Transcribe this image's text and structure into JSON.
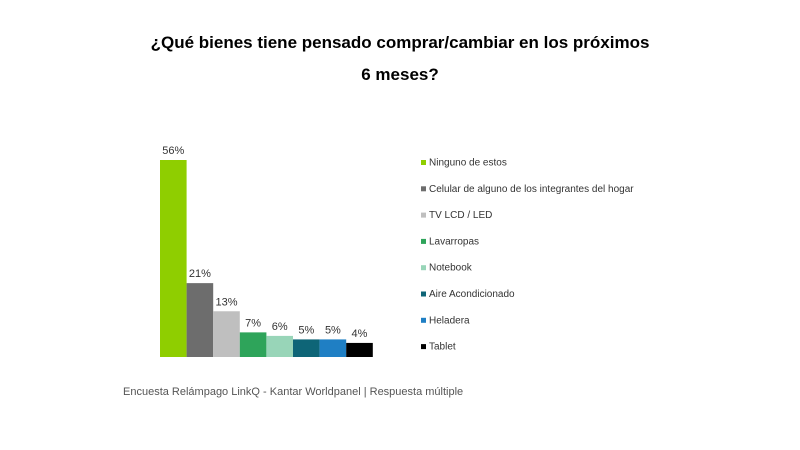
{
  "chart_data": {
    "type": "bar",
    "title_line1": "¿Qué bienes tiene pensado comprar/cambiar en los próximos",
    "title_line2": "6 meses?",
    "categories": [
      "Ninguno de estos",
      "Celular de alguno de los integrantes del hogar",
      "TV LCD / LED",
      "Lavarropas",
      "Notebook",
      "Aire Acondicionado",
      "Heladera",
      "Tablet"
    ],
    "values": [
      56,
      21,
      13,
      7,
      6,
      5,
      5,
      4
    ],
    "data_labels": [
      "56%",
      "21%",
      "13%",
      "7%",
      "6%",
      "5%",
      "5%",
      "4%"
    ],
    "colors": [
      "#8fce00",
      "#6d6d6d",
      "#bfbfbf",
      "#2ea45a",
      "#98d5b8",
      "#0e6577",
      "#1f7fc4",
      "#000000"
    ],
    "unit": "%",
    "ylim": [
      0,
      56
    ],
    "grid": false,
    "legend_position": "right"
  },
  "footer": "Encuesta Relámpago LinkQ - Kantar Worldpanel | Respuesta múltiple"
}
